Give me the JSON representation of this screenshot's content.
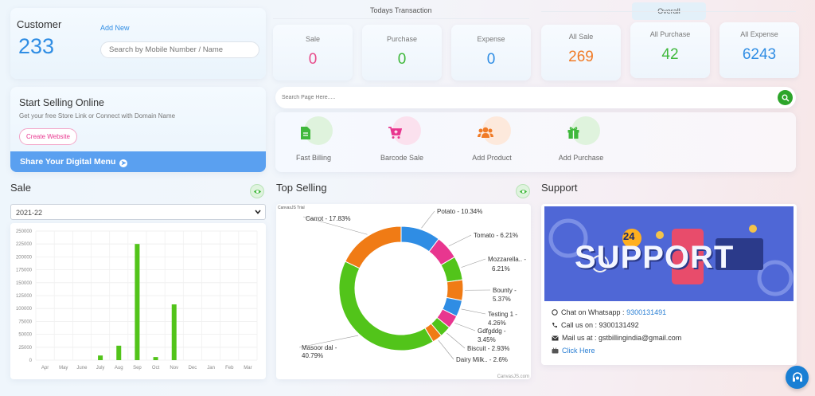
{
  "customer": {
    "title": "Customer",
    "count": "233",
    "add_new": "Add New",
    "search_placeholder": "Search by Mobile Number / Name"
  },
  "transactions": {
    "today_label": "Todays Transaction",
    "overall_label": "Overall",
    "today": [
      {
        "label": "Sale",
        "value": "0",
        "color": "#e84c8b"
      },
      {
        "label": "Purchase",
        "value": "0",
        "color": "#3fb83b"
      },
      {
        "label": "Expense",
        "value": "0",
        "color": "#2f8de4"
      }
    ],
    "overall": [
      {
        "label": "All Sale",
        "value": "269",
        "color": "#f07b27"
      },
      {
        "label": "All Purchase",
        "value": "42",
        "color": "#3fb83b"
      },
      {
        "label": "All Expense",
        "value": "6243",
        "color": "#2f8de4"
      }
    ]
  },
  "online": {
    "title": "Start Selling Online",
    "subtitle": "Get your free Store Link or Connect with Domain Name",
    "create_website": "Create Website",
    "digital_menu": "Share Your Digital Menu"
  },
  "page_search": {
    "placeholder": "Search Page Here....."
  },
  "quick_actions": [
    {
      "label": "Fast Billing",
      "icon": "file-icon",
      "color": "#3fb83b",
      "bg": "#dff3dd"
    },
    {
      "label": "Barcode Sale",
      "icon": "cart-plus-icon",
      "color": "#e8368f",
      "bg": "#fbe1ee"
    },
    {
      "label": "Add Product",
      "icon": "users-icon",
      "color": "#f07b27",
      "bg": "#fde9dc"
    },
    {
      "label": "Add Purchase",
      "icon": "gift-icon",
      "color": "#3fb83b",
      "bg": "#dff3dd"
    }
  ],
  "sale": {
    "title": "Sale",
    "year_selected": "2021-22",
    "chart_data": {
      "type": "bar",
      "categories": [
        "Apr",
        "May",
        "June",
        "July",
        "Aug",
        "Sep",
        "Oct",
        "Nov",
        "Dec",
        "Jan",
        "Feb",
        "Mar"
      ],
      "values": [
        0,
        0,
        0,
        9000,
        28000,
        225000,
        6000,
        108000,
        0,
        0,
        0,
        0
      ],
      "ylim": [
        0,
        250000
      ],
      "yticks": [
        "0",
        "25000",
        "50000",
        "75000",
        "100000",
        "125000",
        "150000",
        "175000",
        "200000",
        "225000",
        "250000"
      ],
      "color": "#52c41a",
      "grid": true
    }
  },
  "top_selling": {
    "title": "Top Selling",
    "trial_text": "CanvasJS Trial",
    "credit": "CanvasJS.com",
    "chart_data": {
      "type": "pie",
      "labels": [
        "Potato",
        "Tomato",
        "Mozzarella..",
        "Bounty",
        "Testing 1",
        "Gdfgddg",
        "Biscuit",
        "Dairy Milk..",
        "Masoor dal",
        "Carrot"
      ],
      "values": [
        10.34,
        6.21,
        6.21,
        5.37,
        4.26,
        3.45,
        2.93,
        2.6,
        40.79,
        17.83
      ],
      "label_text": [
        "Potato - 10.34%",
        "Tomato - 6.21%",
        "Mozzarella.. - 6.21%",
        "Bounty - 5.37%",
        "Testing 1 - 4.26%",
        "Gdfgddg - 3.45%",
        "Biscuit - 2.93%",
        "Dairy Milk.. - 2.6%",
        "Masoor dal - 40.79%",
        "Carrot - 17.83%"
      ],
      "colors": [
        "#2f8de4",
        "#e8368f",
        "#52c41a",
        "#f07b15",
        "#2f8de4",
        "#e8368f",
        "#52c41a",
        "#f07b15",
        "#52c41a",
        "#f07b15"
      ]
    }
  },
  "support": {
    "title": "Support",
    "banner_text": "SUPPORT",
    "banner_badge": "24",
    "whatsapp_label": "Chat on Whatsapp :",
    "whatsapp_number": "9300131491",
    "call_label": "Call us on : 9300131492",
    "mail_label": "Mail us at : gstbillingindia@gmail.com",
    "youtube_label": "Click Here"
  }
}
